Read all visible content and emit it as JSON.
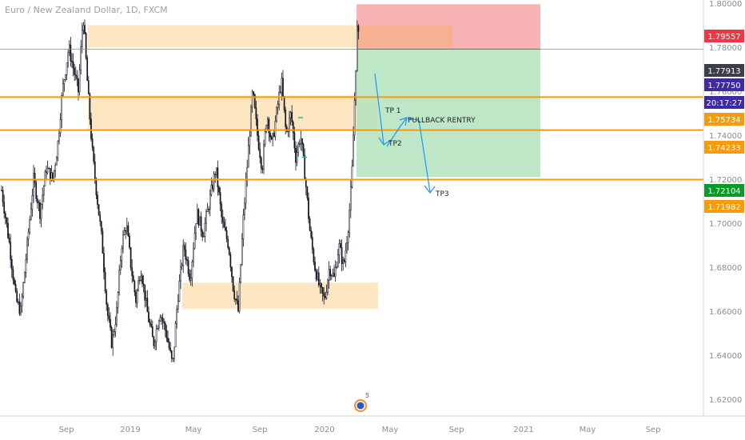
{
  "header": {
    "title": "Euro / New Zealand Dollar, 1D, FXCM"
  },
  "chart_data": {
    "type": "candlestick",
    "title": "Euro / New Zealand Dollar, 1D, FXCM",
    "symbol": "EURNZD",
    "timeframe": "1D",
    "source": "FXCM",
    "ylim": [
      1.615,
      1.815
    ],
    "x_ticks": [
      "Sep",
      "2019",
      "May",
      "Sep",
      "2020",
      "May",
      "Sep",
      "2021",
      "May",
      "Sep"
    ],
    "y_ticks": [
      "1.80000",
      "1.78000",
      "1.76000",
      "1.74000",
      "1.72000",
      "1.70000",
      "1.68000",
      "1.66000",
      "1.64000",
      "1.62000"
    ],
    "y_tick_values": [
      1.8,
      1.78,
      1.76,
      1.74,
      1.72,
      1.7,
      1.68,
      1.66,
      1.64,
      1.62
    ],
    "price_labels": [
      {
        "text": "1.79557",
        "value": 1.79557,
        "color": "#f23645"
      },
      {
        "text": "1.77913",
        "value": 1.77913,
        "color": "#3c3f47"
      },
      {
        "text": "1.77750",
        "value": 1.7775,
        "color": "#3f2a9e"
      },
      {
        "text": "20:17:27",
        "value": 1.7775,
        "color": "#3f2a9e"
      },
      {
        "text": "1.75734",
        "value": 1.75734,
        "color": "#f59b0d"
      },
      {
        "text": "1.74233",
        "value": 1.74233,
        "color": "#f59b0d"
      },
      {
        "text": "1.72104",
        "value": 1.72104,
        "color": "#0a9a2c"
      },
      {
        "text": "1.71982",
        "value": 1.71982,
        "color": "#f59b0d"
      }
    ],
    "horizontal_lines": [
      1.75734,
      1.74233,
      1.71982
    ],
    "last_price": 1.77913,
    "position": {
      "entry": 1.77913,
      "stop": 1.79557,
      "target": 1.72104
    },
    "annotations": [
      "TP 1",
      "PULLBACK  RENTRY",
      "TP2",
      "TP3"
    ],
    "colors": {
      "candle": "#131722",
      "level_line": "#f59b0d",
      "zone_fill": "#fde3b8",
      "loss_zone": "#f7a7a7",
      "profit_zone": "#b3e3bd",
      "arrow": "#2196f3"
    }
  }
}
